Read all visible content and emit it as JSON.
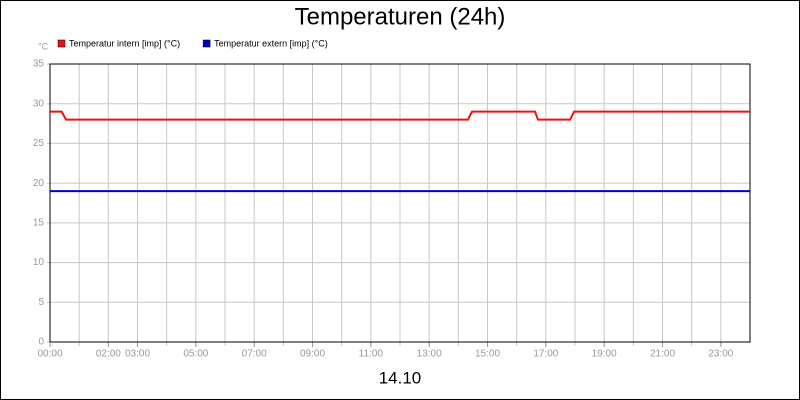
{
  "chart_data": {
    "type": "line",
    "title": "Temperaturen (24h)",
    "ylabel": "°C",
    "xlabel": "14.10",
    "xlim": [
      0,
      24
    ],
    "ylim": [
      0,
      35
    ],
    "yticks": [
      0,
      5,
      10,
      15,
      20,
      25,
      30,
      35
    ],
    "xticks": [
      {
        "value": 0,
        "label": "00:00"
      },
      {
        "value": 2,
        "label": "02:00"
      },
      {
        "value": 3,
        "label": "03:00"
      },
      {
        "value": 5,
        "label": "05:00"
      },
      {
        "value": 7,
        "label": "07:00"
      },
      {
        "value": 9,
        "label": "09:00"
      },
      {
        "value": 11,
        "label": "11:00"
      },
      {
        "value": 13,
        "label": "13:00"
      },
      {
        "value": 15,
        "label": "15:00"
      },
      {
        "value": 17,
        "label": "17:00"
      },
      {
        "value": 19,
        "label": "19:00"
      },
      {
        "value": 21,
        "label": "21:00"
      },
      {
        "value": 23,
        "label": "23:00"
      }
    ],
    "xgrid": [
      1,
      2,
      3,
      4,
      5,
      6,
      7,
      8,
      9,
      10,
      11,
      12,
      13,
      14,
      15,
      16,
      17,
      18,
      19,
      20,
      21,
      22,
      23
    ],
    "grid": true,
    "series": [
      {
        "name": "Temperatur intern [imp] (°C)",
        "color": "#ee1111",
        "x": [
          0,
          0.4,
          0.55,
          14.33,
          14.47,
          16.63,
          16.73,
          17.83,
          17.97,
          24
        ],
        "values": [
          29,
          29,
          28,
          28,
          29,
          29,
          28,
          28,
          29,
          29
        ]
      },
      {
        "name": "Temperatur extern [imp] (°C)",
        "color": "#0000cc",
        "x": [
          0,
          24
        ],
        "values": [
          19,
          19
        ]
      }
    ]
  }
}
